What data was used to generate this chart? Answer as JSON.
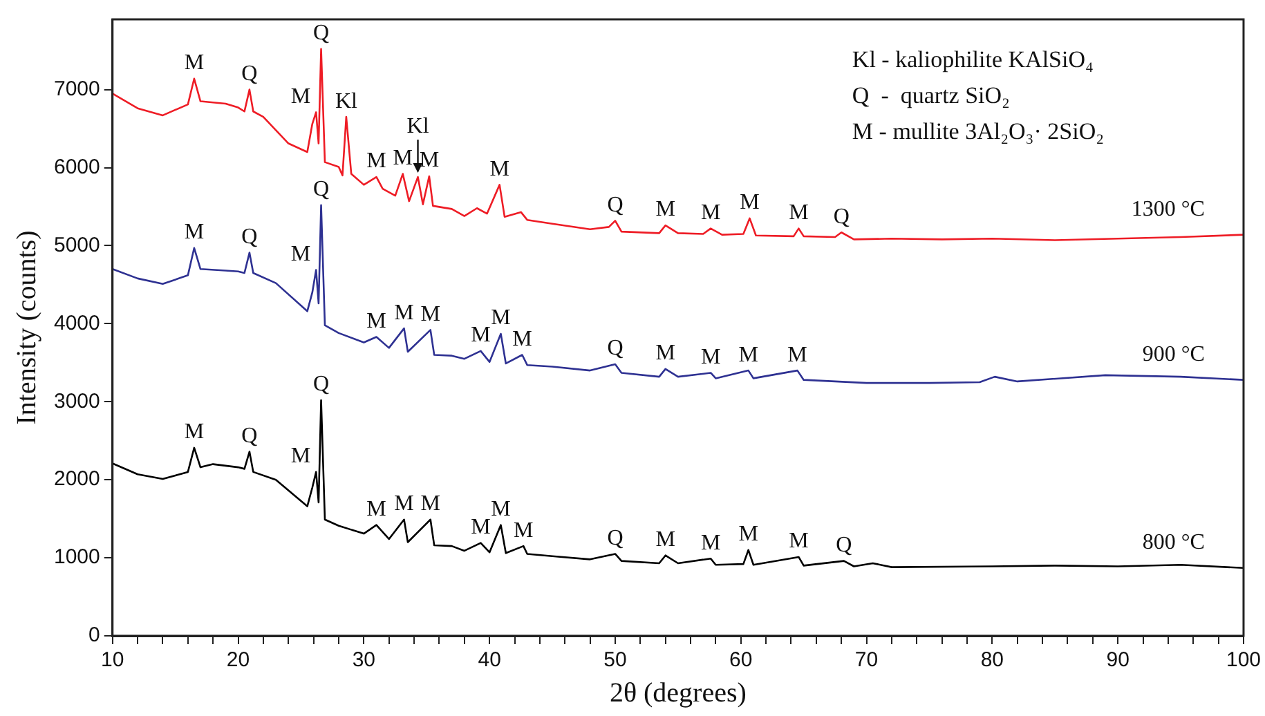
{
  "chart_data": {
    "type": "line",
    "xlabel": "2θ (degrees)",
    "ylabel": "Intensity (counts)",
    "xlim": [
      10,
      100
    ],
    "ylim": [
      0,
      7900
    ],
    "xticks": [
      10,
      {
        "value": 12,
        "label": null
      },
      {
        "value": 14,
        "label": null
      },
      {
        "value": 16,
        "label": null
      },
      {
        "value": 18,
        "label": null
      },
      20,
      {
        "value": 22,
        "label": null
      },
      {
        "value": 24,
        "label": null
      },
      {
        "value": 26,
        "label": null
      },
      {
        "value": 28,
        "label": null
      },
      30,
      {
        "value": 32,
        "label": null
      },
      {
        "value": 34,
        "label": null
      },
      {
        "value": 36,
        "label": null
      },
      {
        "value": 38,
        "label": null
      },
      40,
      {
        "value": 42,
        "label": null
      },
      {
        "value": 44,
        "label": null
      },
      {
        "value": 46,
        "label": null
      },
      {
        "value": 48,
        "label": null
      },
      50,
      {
        "value": 52,
        "label": null
      },
      {
        "value": 54,
        "label": null
      },
      {
        "value": 56,
        "label": null
      },
      {
        "value": 58,
        "label": null
      },
      60,
      {
        "value": 62,
        "label": null
      },
      {
        "value": 64,
        "label": null
      },
      {
        "value": 66,
        "label": null
      },
      {
        "value": 68,
        "label": null
      },
      70,
      {
        "value": 72,
        "label": null
      },
      {
        "value": 74,
        "label": null
      },
      {
        "value": 76,
        "label": null
      },
      {
        "value": 78,
        "label": null
      },
      80,
      {
        "value": 82,
        "label": null
      },
      {
        "value": 84,
        "label": null
      },
      {
        "value": 86,
        "label": null
      },
      {
        "value": 88,
        "label": null
      },
      90,
      {
        "value": 92,
        "label": null
      },
      {
        "value": 94,
        "label": null
      },
      {
        "value": 96,
        "label": null
      },
      {
        "value": 98,
        "label": null
      },
      100
    ],
    "yticks": [
      0,
      1000,
      2000,
      3000,
      4000,
      5000,
      6000,
      7000
    ],
    "grid": false,
    "legend": false,
    "marker": "none",
    "line_style": "solid",
    "series": [
      {
        "name": "1300 °C",
        "color": "#ee1c25",
        "x": [
          10,
          12,
          14,
          16,
          16.5,
          17,
          19,
          20,
          20.5,
          20.9,
          21.2,
          22,
          24,
          25.5,
          25.9,
          26.2,
          26.4,
          26.6,
          26.9,
          28,
          28.3,
          28.6,
          29,
          30,
          31,
          31.5,
          32.5,
          33.1,
          33.6,
          34.3,
          34.7,
          35.2,
          35.5,
          37,
          38,
          39,
          39.8,
          40.8,
          41.2,
          42.5,
          43,
          45,
          48,
          49.5,
          50,
          50.5,
          53.5,
          54,
          55,
          57,
          57.6,
          58.5,
          60.2,
          60.7,
          61.2,
          64.2,
          64.6,
          65,
          67.5,
          68,
          69,
          72,
          76,
          80,
          85,
          90,
          95,
          100
        ],
        "values": [
          6950,
          6760,
          6670,
          6810,
          7140,
          6850,
          6820,
          6770,
          6720,
          7000,
          6720,
          6650,
          6310,
          6200,
          6560,
          6710,
          6310,
          7520,
          6070,
          6010,
          5900,
          6650,
          5920,
          5780,
          5880,
          5730,
          5640,
          5920,
          5570,
          5880,
          5530,
          5890,
          5510,
          5470,
          5380,
          5480,
          5410,
          5780,
          5370,
          5430,
          5330,
          5280,
          5210,
          5240,
          5320,
          5180,
          5160,
          5260,
          5160,
          5150,
          5220,
          5140,
          5150,
          5350,
          5130,
          5120,
          5220,
          5120,
          5110,
          5170,
          5080,
          5090,
          5080,
          5090,
          5070,
          5090,
          5110,
          5140
        ]
      },
      {
        "name": "900 °C",
        "color": "#2e3192",
        "x": [
          10,
          12,
          14,
          16,
          16.5,
          17,
          19,
          20,
          20.5,
          20.9,
          21.2,
          23,
          25.5,
          25.9,
          26.2,
          26.4,
          26.6,
          26.9,
          28,
          30,
          31,
          32,
          33.2,
          33.5,
          35.3,
          35.6,
          37,
          38,
          39.3,
          40,
          40.9,
          41.3,
          42.6,
          43,
          45,
          48,
          50,
          50.5,
          53.5,
          54,
          55,
          57.6,
          58,
          60.6,
          61,
          64.5,
          65,
          70,
          75,
          79,
          80.2,
          82,
          89,
          95,
          100
        ],
        "values": [
          4700,
          4580,
          4510,
          4620,
          4970,
          4700,
          4680,
          4670,
          4650,
          4910,
          4650,
          4520,
          4160,
          4400,
          4690,
          4260,
          5520,
          3980,
          3880,
          3760,
          3830,
          3690,
          3940,
          3640,
          3920,
          3600,
          3590,
          3550,
          3650,
          3510,
          3870,
          3490,
          3600,
          3470,
          3450,
          3400,
          3480,
          3370,
          3320,
          3420,
          3320,
          3370,
          3300,
          3400,
          3300,
          3400,
          3280,
          3240,
          3240,
          3250,
          3320,
          3260,
          3340,
          3320,
          3280
        ]
      },
      {
        "name": "800 °C",
        "color": "#000000",
        "x": [
          10,
          12,
          14,
          16,
          16.5,
          17,
          18,
          20,
          20.5,
          20.9,
          21.2,
          23,
          25.5,
          25.9,
          26.2,
          26.4,
          26.6,
          26.9,
          28,
          30,
          31,
          32,
          33.2,
          33.5,
          35.3,
          35.6,
          37,
          38,
          39.3,
          40,
          40.9,
          41.3,
          42.7,
          43,
          45,
          48,
          50,
          50.5,
          53.5,
          54,
          55,
          57.6,
          58,
          60.2,
          60.6,
          61,
          64.6,
          65,
          68.2,
          69,
          70.5,
          72,
          80,
          85,
          90,
          95,
          100
        ],
        "values": [
          2210,
          2070,
          2010,
          2100,
          2410,
          2160,
          2200,
          2160,
          2140,
          2360,
          2100,
          2000,
          1660,
          1900,
          2100,
          1710,
          3020,
          1490,
          1410,
          1310,
          1420,
          1240,
          1490,
          1200,
          1490,
          1160,
          1150,
          1090,
          1190,
          1070,
          1420,
          1060,
          1150,
          1050,
          1020,
          980,
          1050,
          960,
          930,
          1030,
          930,
          990,
          910,
          920,
          1100,
          910,
          1010,
          900,
          960,
          890,
          930,
          880,
          890,
          900,
          890,
          910,
          870
        ]
      }
    ],
    "annotations": [
      "Kl - kaliophilite KAlSiO₄",
      "Q  -  quartz SiO₂",
      "M - mullite 3Al₂O₃· 2SiO₂",
      {
        "text": "M",
        "x": 16.5,
        "y": 7140
      },
      {
        "text": "Q",
        "x": 20.9,
        "y": 7000
      },
      {
        "text": "M",
        "x": 26.2,
        "y": 6710
      },
      {
        "text": "Q",
        "x": 26.6,
        "y": 7520
      },
      {
        "text": "Kl",
        "x": 28.6,
        "y": 6650
      },
      {
        "text": "M",
        "x": 31,
        "y": 5880
      },
      {
        "text": "M",
        "x": 33.1,
        "y": 5920
      },
      {
        "text": "Kl",
        "x": 34.3,
        "y": 5880
      },
      {
        "text": "M",
        "x": 35.2,
        "y": 5890
      },
      {
        "text": "M",
        "x": 40.8,
        "y": 5780
      },
      {
        "text": "Q",
        "x": 50,
        "y": 5320
      },
      {
        "text": "M",
        "x": 54,
        "y": 5260
      },
      {
        "text": "M",
        "x": 57.6,
        "y": 5220
      },
      {
        "text": "M",
        "x": 60.7,
        "y": 5350
      },
      {
        "text": "M",
        "x": 64.6,
        "y": 5220
      },
      {
        "text": "Q",
        "x": 68,
        "y": 5170
      },
      {
        "text": "M",
        "x": 16.5,
        "y": 4970
      },
      {
        "text": "Q",
        "x": 20.9,
        "y": 4910
      },
      {
        "text": "M",
        "x": 26.2,
        "y": 4690
      },
      {
        "text": "Q",
        "x": 26.6,
        "y": 5520
      },
      {
        "text": "M",
        "x": 31,
        "y": 3830
      },
      {
        "text": "M",
        "x": 33.2,
        "y": 3940
      },
      {
        "text": "M",
        "x": 35.3,
        "y": 3920
      },
      {
        "text": "M",
        "x": 39.3,
        "y": 3650
      },
      {
        "text": "M",
        "x": 40.9,
        "y": 3870
      },
      {
        "text": "M",
        "x": 42.6,
        "y": 3600
      },
      {
        "text": "Q",
        "x": 50,
        "y": 3480
      },
      {
        "text": "M",
        "x": 54,
        "y": 3420
      },
      {
        "text": "M",
        "x": 57.6,
        "y": 3370
      },
      {
        "text": "M",
        "x": 60.6,
        "y": 3400
      },
      {
        "text": "M",
        "x": 64.5,
        "y": 3400
      },
      {
        "text": "M",
        "x": 16.5,
        "y": 2410
      },
      {
        "text": "Q",
        "x": 20.9,
        "y": 2360
      },
      {
        "text": "M",
        "x": 26.2,
        "y": 2100
      },
      {
        "text": "Q",
        "x": 26.6,
        "y": 3020
      },
      {
        "text": "M",
        "x": 31,
        "y": 1420
      },
      {
        "text": "M",
        "x": 33.2,
        "y": 1490
      },
      {
        "text": "M",
        "x": 35.3,
        "y": 1490
      },
      {
        "text": "M",
        "x": 39.3,
        "y": 1190
      },
      {
        "text": "M",
        "x": 40.9,
        "y": 1420
      },
      {
        "text": "M",
        "x": 42.7,
        "y": 1150
      },
      {
        "text": "Q",
        "x": 50,
        "y": 1050
      },
      {
        "text": "M",
        "x": 54,
        "y": 1030
      },
      {
        "text": "M",
        "x": 57.6,
        "y": 990
      },
      {
        "text": "M",
        "x": 60.6,
        "y": 1100
      },
      {
        "text": "M",
        "x": 64.6,
        "y": 1010
      },
      {
        "text": "Q",
        "x": 68.2,
        "y": 960
      }
    ]
  }
}
